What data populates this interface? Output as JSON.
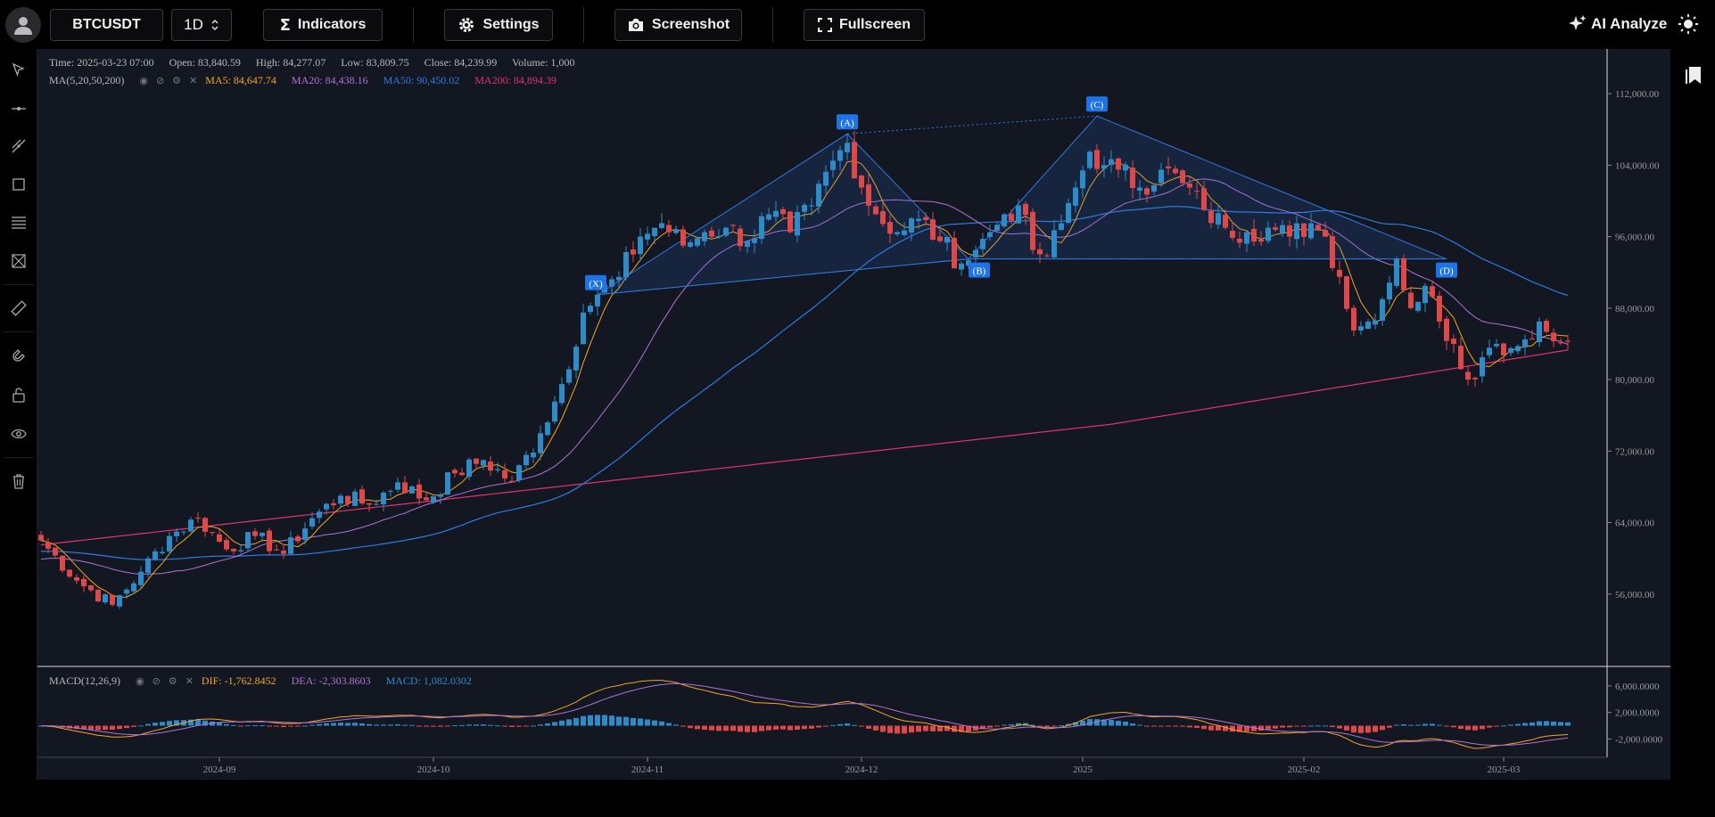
{
  "toolbar": {
    "symbol": "BTCUSDT",
    "interval": "1D",
    "indicators_label": "Indicators",
    "settings_label": "Settings",
    "screenshot_label": "Screenshot",
    "fullscreen_label": "Fullscreen",
    "ai_label": "AI Analyze"
  },
  "ohlc": {
    "time": "Time: 2025-03-23 07:00",
    "open": "Open: 83,840.59",
    "high": "High: 84,277.07",
    "low": "Low: 83,809.75",
    "close": "Close: 84,239.99",
    "volume": "Volume: 1,000"
  },
  "ma_legend": {
    "name": "MA(5,20,50,200)",
    "ma5": "MA5: 84,647.74",
    "ma20": "MA20: 84,438.16",
    "ma50": "MA50: 90,450.02",
    "ma200": "MA200: 84,894.39"
  },
  "macd_legend": {
    "name": "MACD(12,26,9)",
    "dif": "DIF: -1,762.8452",
    "dea": "DEA: -2,303.8603",
    "macd": "MACD: 1,082.0302"
  },
  "colors": {
    "up": "#2c8cc9",
    "down": "#e04848",
    "ma5": "#f5a623",
    "ma20": "#b072d6",
    "ma50": "#2f7be0",
    "ma200": "#e3336f",
    "pattern": "#2f7be0"
  },
  "chart_data": {
    "type": "candlestick",
    "price_axis_ticks": [
      "112,000.00",
      "104,000.00",
      "96,000.00",
      "88,000.00",
      "80,000.00",
      "72,000.00",
      "64,000.00",
      "56,000.00"
    ],
    "price_axis_values": [
      112000,
      104000,
      96000,
      88000,
      80000,
      72000,
      64000,
      56000
    ],
    "ylim": [
      48000,
      117000
    ],
    "time_axis_ticks": [
      "2024-09",
      "2024-10",
      "2024-11",
      "2024-12",
      "2025",
      "2025-02",
      "2025-03"
    ],
    "time_axis_positions_days": [
      25,
      55,
      85,
      115,
      146,
      177,
      205
    ],
    "macd_axis_ticks": [
      "6,000.0000",
      "2,000.0000",
      "-2,000.0000"
    ],
    "macd_axis_values": [
      6000,
      2000,
      -2000
    ],
    "macd_ylim": [
      -4500,
      8000
    ],
    "pattern_points": [
      {
        "label": "(X)",
        "day": 78,
        "price": 89500
      },
      {
        "label": "(A)",
        "day": 113,
        "price": 107500
      },
      {
        "label": "(B)",
        "day": 130,
        "price": 93500
      },
      {
        "label": "(C)",
        "day": 148,
        "price": 109500
      },
      {
        "label": "(D)",
        "day": 197,
        "price": 93500
      }
    ],
    "closes": [
      [
        0,
        62000
      ],
      [
        5,
        57500
      ],
      [
        10,
        54800
      ],
      [
        14,
        58500
      ],
      [
        18,
        62500
      ],
      [
        22,
        64500
      ],
      [
        26,
        61000
      ],
      [
        30,
        62500
      ],
      [
        34,
        60500
      ],
      [
        38,
        64500
      ],
      [
        42,
        67000
      ],
      [
        46,
        66000
      ],
      [
        50,
        68500
      ],
      [
        54,
        66500
      ],
      [
        58,
        69500
      ],
      [
        62,
        71000
      ],
      [
        66,
        68500
      ],
      [
        70,
        74000
      ],
      [
        73,
        79500
      ],
      [
        76,
        87500
      ],
      [
        78,
        89500
      ],
      [
        81,
        91500
      ],
      [
        84,
        96000
      ],
      [
        87,
        97500
      ],
      [
        90,
        95000
      ],
      [
        93,
        96500
      ],
      [
        96,
        97000
      ],
      [
        99,
        95500
      ],
      [
        102,
        98500
      ],
      [
        105,
        96500
      ],
      [
        108,
        99500
      ],
      [
        111,
        104500
      ],
      [
        113,
        106500
      ],
      [
        115,
        101500
      ],
      [
        117,
        98500
      ],
      [
        120,
        96500
      ],
      [
        123,
        98000
      ],
      [
        126,
        95500
      ],
      [
        129,
        93000
      ],
      [
        131,
        94500
      ],
      [
        133,
        96500
      ],
      [
        135,
        98500
      ],
      [
        137,
        99500
      ],
      [
        139,
        94500
      ],
      [
        141,
        93800
      ],
      [
        143,
        97500
      ],
      [
        145,
        101500
      ],
      [
        147,
        105500
      ],
      [
        149,
        104000
      ],
      [
        151,
        103500
      ],
      [
        154,
        101500
      ],
      [
        157,
        103500
      ],
      [
        160,
        102000
      ],
      [
        163,
        99000
      ],
      [
        166,
        97000
      ],
      [
        169,
        96500
      ],
      [
        172,
        97000
      ],
      [
        175,
        96000
      ],
      [
        178,
        97500
      ],
      [
        180,
        96000
      ],
      [
        182,
        91500
      ],
      [
        184,
        85500
      ],
      [
        186,
        86500
      ],
      [
        188,
        89000
      ],
      [
        190,
        93500
      ],
      [
        192,
        88000
      ],
      [
        194,
        90500
      ],
      [
        196,
        86500
      ],
      [
        198,
        84000
      ],
      [
        200,
        80000
      ],
      [
        202,
        82500
      ],
      [
        204,
        84000
      ],
      [
        206,
        83500
      ],
      [
        208,
        84500
      ],
      [
        210,
        86500
      ],
      [
        212,
        84300
      ],
      [
        214,
        84240
      ]
    ]
  }
}
